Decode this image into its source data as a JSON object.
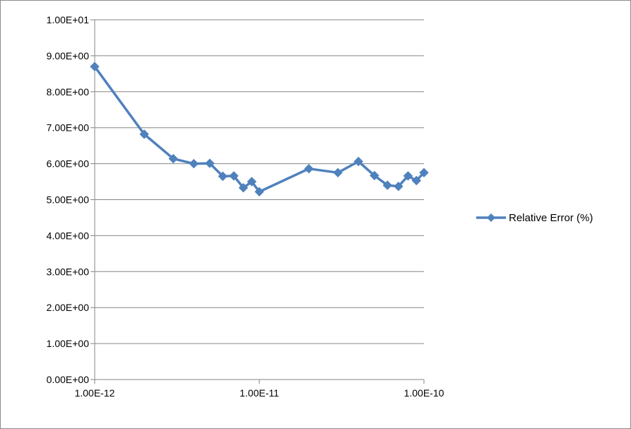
{
  "chart_data": {
    "type": "line",
    "x_scale": "log",
    "xlim": [
      1e-12,
      1e-10
    ],
    "ylim": [
      0,
      10
    ],
    "x_ticks": [
      {
        "value": 1e-12,
        "label": "1.00E-12"
      },
      {
        "value": 1e-11,
        "label": "1.00E-11"
      },
      {
        "value": 1e-10,
        "label": "1.00E-10"
      }
    ],
    "y_ticks": [
      {
        "value": 0,
        "label": "0.00E+00"
      },
      {
        "value": 1,
        "label": "1.00E+00"
      },
      {
        "value": 2,
        "label": "2.00E+00"
      },
      {
        "value": 3,
        "label": "3.00E+00"
      },
      {
        "value": 4,
        "label": "4.00E+00"
      },
      {
        "value": 5,
        "label": "5.00E+00"
      },
      {
        "value": 6,
        "label": "6.00E+00"
      },
      {
        "value": 7,
        "label": "7.00E+00"
      },
      {
        "value": 8,
        "label": "8.00E+00"
      },
      {
        "value": 9,
        "label": "9.00E+00"
      },
      {
        "value": 10,
        "label": "1.00E+01"
      }
    ],
    "grid": "horizontal",
    "legend_position": "right",
    "colors": {
      "series": "#4f81bd",
      "grid": "#868686",
      "axis": "#868686"
    },
    "series": [
      {
        "name": "Relative Error (%)",
        "x": [
          1e-12,
          2e-12,
          3e-12,
          4e-12,
          5e-12,
          6e-12,
          7e-12,
          8e-12,
          9e-12,
          1e-11,
          2e-11,
          3e-11,
          4e-11,
          5e-11,
          6e-11,
          7e-11,
          8e-11,
          9e-11,
          1e-10
        ],
        "y": [
          8.7,
          6.82,
          6.14,
          6.0,
          6.01,
          5.65,
          5.66,
          5.33,
          5.5,
          5.22,
          5.86,
          5.75,
          6.06,
          5.67,
          5.4,
          5.37,
          5.66,
          5.53,
          5.75
        ]
      }
    ]
  }
}
